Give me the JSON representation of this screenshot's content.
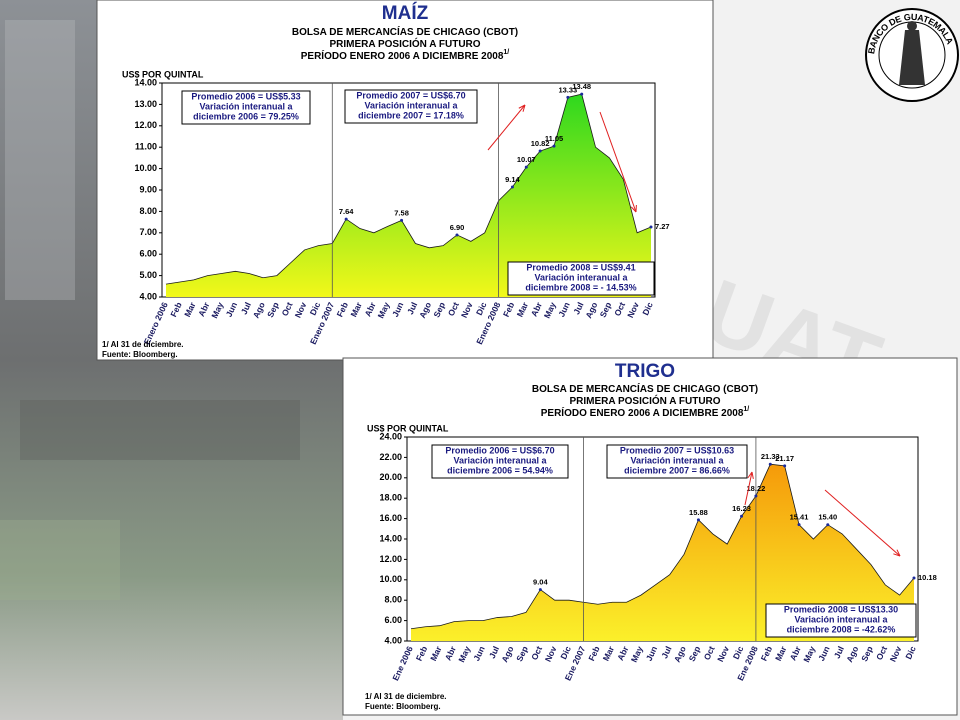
{
  "logo_text": "BANCO DE GUATEMALA",
  "chart_data": [
    {
      "type": "area",
      "title": "MAÍZ",
      "subtitle": [
        "BOLSA DE MERCANCÍAS DE CHICAGO (CBOT)",
        "PRIMERA POSICIÓN A FUTURO",
        "PERÍODO ENERO 2006 A DICIEMBRE 2008"
      ],
      "subtitle_mark": "1/",
      "ylabel": "US$ POR QUINTAL",
      "gradient": [
        "#2ed81e",
        "#f2f81a"
      ],
      "categories": [
        "Enero 2006",
        "Feb",
        "Mar",
        "Abr",
        "May",
        "Jun",
        "Jul",
        "Ago",
        "Sep",
        "Oct",
        "Nov",
        "Dic",
        "Enero 2007",
        "Feb",
        "Mar",
        "Abr",
        "May",
        "Jun",
        "Jul",
        "Ago",
        "Sep",
        "Oct",
        "Nov",
        "Dic",
        "Enero 2008",
        "Feb",
        "Mar",
        "Abr",
        "May",
        "Jun",
        "Jul",
        "Ago",
        "Sep",
        "Oct",
        "Nov",
        "Dic"
      ],
      "values": [
        4.6,
        4.7,
        4.8,
        5.0,
        5.1,
        5.2,
        5.1,
        4.9,
        5.0,
        5.6,
        6.2,
        6.4,
        6.5,
        7.64,
        7.2,
        7.0,
        7.3,
        7.58,
        6.5,
        6.3,
        6.4,
        6.9,
        6.6,
        7.0,
        8.5,
        9.14,
        10.07,
        10.82,
        11.05,
        13.33,
        13.48,
        11.0,
        10.5,
        9.5,
        7.0,
        7.27
      ],
      "value_labels": [
        null,
        null,
        null,
        null,
        null,
        null,
        null,
        null,
        null,
        null,
        null,
        null,
        null,
        "7.64",
        null,
        null,
        null,
        "7.58",
        null,
        null,
        null,
        "6.90",
        null,
        null,
        null,
        "9.14",
        "10.07",
        "10.82",
        "11.05",
        "13.33",
        "13.48",
        null,
        null,
        null,
        null,
        "7.27"
      ],
      "ylim": [
        4,
        14
      ],
      "yticks": [
        {
          "value": 4,
          "label": "4.00"
        },
        {
          "value": 5,
          "label": "5.00"
        },
        {
          "value": 6,
          "label": "6.00"
        },
        {
          "value": 7,
          "label": "7.00"
        },
        {
          "value": 8,
          "label": "8.00"
        },
        {
          "value": 9,
          "label": "9.00"
        },
        {
          "value": 10,
          "label": "10.00"
        },
        {
          "value": 11,
          "label": "11.00"
        },
        {
          "value": 12,
          "label": "12.00"
        },
        {
          "value": 13,
          "label": "13.00"
        },
        {
          "value": 14,
          "label": "14.00"
        }
      ],
      "notes": [
        [
          "Promedio 2006 = US$5.33",
          "Variación interanual a",
          "diciembre 2006 = 79.25%"
        ],
        [
          "Promedio 2007 = US$6.70",
          "Variación interanual a",
          "diciembre 2007 = 17.18%"
        ],
        [
          "Promedio 2008 = US$9.41",
          "Variación interanual a",
          "diciembre 2008 = - 14.53%"
        ]
      ],
      "footnotes": [
        "1/ Al 31 de diciembre.",
        "Fuente: Bloomberg."
      ]
    },
    {
      "type": "area",
      "title": "TRIGO",
      "subtitle": [
        "BOLSA DE MERCANCÍAS DE CHICAGO (CBOT)",
        "PRIMERA POSICIÓN A FUTURO",
        "PERÍODO ENERO 2006 A DICIEMBRE 2008"
      ],
      "subtitle_mark": "1/",
      "ylabel": "US$ POR QUINTAL",
      "gradient": [
        "#f59a0a",
        "#fbf02a"
      ],
      "categories": [
        "Ene 2006",
        "Feb",
        "Mar",
        "Abr",
        "May",
        "Jun",
        "Jul",
        "Ago",
        "Sep",
        "Oct",
        "Nov",
        "Dic",
        "Ene 2007",
        "Feb",
        "Mar",
        "Abr",
        "May",
        "Jun",
        "Jul",
        "Ago",
        "Sep",
        "Oct",
        "Nov",
        "Dic",
        "Ene 2008",
        "Feb",
        "Mar",
        "Abr",
        "May",
        "Jun",
        "Jul",
        "Ago",
        "Sep",
        "Oct",
        "Nov",
        "Dic"
      ],
      "values": [
        5.2,
        5.4,
        5.5,
        5.9,
        6.0,
        6.0,
        6.3,
        6.4,
        6.8,
        9.04,
        8.0,
        8.0,
        7.8,
        7.6,
        7.8,
        7.8,
        8.5,
        9.5,
        10.5,
        12.5,
        15.88,
        14.5,
        13.5,
        16.23,
        18.22,
        21.33,
        21.17,
        15.41,
        14.0,
        15.4,
        14.5,
        13.0,
        11.5,
        9.5,
        8.5,
        10.18
      ],
      "value_labels": [
        null,
        null,
        null,
        null,
        null,
        null,
        null,
        null,
        null,
        "9.04",
        null,
        null,
        null,
        null,
        null,
        null,
        null,
        null,
        null,
        null,
        "15.88",
        null,
        null,
        "16.23",
        "18.22",
        "21.33",
        "21.17",
        "15.41",
        null,
        "15.40",
        null,
        null,
        null,
        null,
        null,
        "10.18"
      ],
      "ylim": [
        4,
        24
      ],
      "yticks": [
        {
          "value": 4,
          "label": "4.00"
        },
        {
          "value": 6,
          "label": "6.00"
        },
        {
          "value": 8,
          "label": "8.00"
        },
        {
          "value": 10,
          "label": "10.00"
        },
        {
          "value": 12,
          "label": "12.00"
        },
        {
          "value": 14,
          "label": "14.00"
        },
        {
          "value": 16,
          "label": "16.00"
        },
        {
          "value": 18,
          "label": "18.00"
        },
        {
          "value": 20,
          "label": "20.00"
        },
        {
          "value": 22,
          "label": "22.00"
        },
        {
          "value": 24,
          "label": "24.00"
        }
      ],
      "notes": [
        [
          "Promedio 2006 = US$6.70",
          "Variación interanual a",
          "diciembre 2006 = 54.94%"
        ],
        [
          "Promedio 2007 = US$10.63",
          "Variación interanual a",
          "diciembre 2007 = 86.66%"
        ],
        [
          "Promedio 2008 = US$13.30",
          "Variación interanual a",
          "diciembre 2008 = -42.62%"
        ]
      ],
      "footnotes": [
        "1/ Al 31 de diciembre.",
        "Fuente: Bloomberg."
      ]
    }
  ]
}
